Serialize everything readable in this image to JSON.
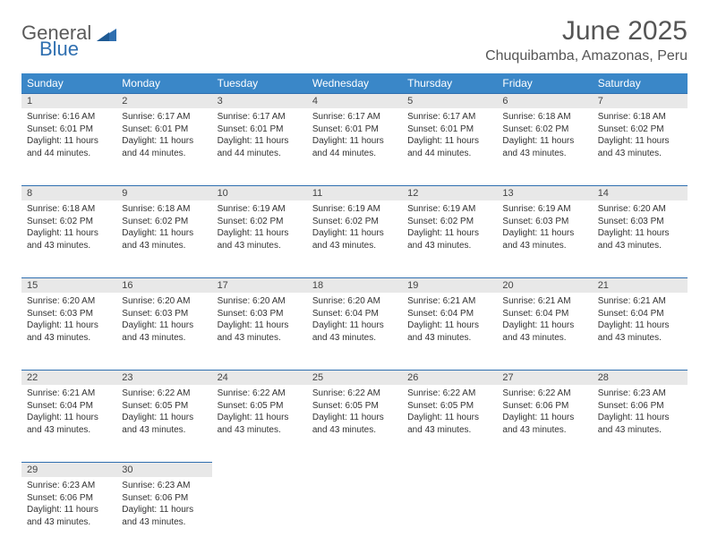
{
  "logo": {
    "word1": "General",
    "word2": "Blue"
  },
  "title": "June 2025",
  "location": "Chuquibamba, Amazonas, Peru",
  "colors": {
    "header_bg": "#3a87c8",
    "header_text": "#ffffff",
    "daynum_bg": "#e8e8e8",
    "daynum_border": "#2f6fb0",
    "text": "#333333",
    "title_text": "#555555",
    "logo_gray": "#5a5a5a",
    "logo_blue": "#2f6fb0",
    "background": "#ffffff"
  },
  "fonts": {
    "family": "Arial",
    "title_size_pt": 22,
    "location_size_pt": 12,
    "weekday_size_pt": 9,
    "daynum_size_pt": 8,
    "body_size_pt": 7.5
  },
  "weekdays": [
    "Sunday",
    "Monday",
    "Tuesday",
    "Wednesday",
    "Thursday",
    "Friday",
    "Saturday"
  ],
  "weeks": [
    [
      {
        "num": "1",
        "sunrise": "Sunrise: 6:16 AM",
        "sunset": "Sunset: 6:01 PM",
        "day1": "Daylight: 11 hours",
        "day2": "and 44 minutes."
      },
      {
        "num": "2",
        "sunrise": "Sunrise: 6:17 AM",
        "sunset": "Sunset: 6:01 PM",
        "day1": "Daylight: 11 hours",
        "day2": "and 44 minutes."
      },
      {
        "num": "3",
        "sunrise": "Sunrise: 6:17 AM",
        "sunset": "Sunset: 6:01 PM",
        "day1": "Daylight: 11 hours",
        "day2": "and 44 minutes."
      },
      {
        "num": "4",
        "sunrise": "Sunrise: 6:17 AM",
        "sunset": "Sunset: 6:01 PM",
        "day1": "Daylight: 11 hours",
        "day2": "and 44 minutes."
      },
      {
        "num": "5",
        "sunrise": "Sunrise: 6:17 AM",
        "sunset": "Sunset: 6:01 PM",
        "day1": "Daylight: 11 hours",
        "day2": "and 44 minutes."
      },
      {
        "num": "6",
        "sunrise": "Sunrise: 6:18 AM",
        "sunset": "Sunset: 6:02 PM",
        "day1": "Daylight: 11 hours",
        "day2": "and 43 minutes."
      },
      {
        "num": "7",
        "sunrise": "Sunrise: 6:18 AM",
        "sunset": "Sunset: 6:02 PM",
        "day1": "Daylight: 11 hours",
        "day2": "and 43 minutes."
      }
    ],
    [
      {
        "num": "8",
        "sunrise": "Sunrise: 6:18 AM",
        "sunset": "Sunset: 6:02 PM",
        "day1": "Daylight: 11 hours",
        "day2": "and 43 minutes."
      },
      {
        "num": "9",
        "sunrise": "Sunrise: 6:18 AM",
        "sunset": "Sunset: 6:02 PM",
        "day1": "Daylight: 11 hours",
        "day2": "and 43 minutes."
      },
      {
        "num": "10",
        "sunrise": "Sunrise: 6:19 AM",
        "sunset": "Sunset: 6:02 PM",
        "day1": "Daylight: 11 hours",
        "day2": "and 43 minutes."
      },
      {
        "num": "11",
        "sunrise": "Sunrise: 6:19 AM",
        "sunset": "Sunset: 6:02 PM",
        "day1": "Daylight: 11 hours",
        "day2": "and 43 minutes."
      },
      {
        "num": "12",
        "sunrise": "Sunrise: 6:19 AM",
        "sunset": "Sunset: 6:02 PM",
        "day1": "Daylight: 11 hours",
        "day2": "and 43 minutes."
      },
      {
        "num": "13",
        "sunrise": "Sunrise: 6:19 AM",
        "sunset": "Sunset: 6:03 PM",
        "day1": "Daylight: 11 hours",
        "day2": "and 43 minutes."
      },
      {
        "num": "14",
        "sunrise": "Sunrise: 6:20 AM",
        "sunset": "Sunset: 6:03 PM",
        "day1": "Daylight: 11 hours",
        "day2": "and 43 minutes."
      }
    ],
    [
      {
        "num": "15",
        "sunrise": "Sunrise: 6:20 AM",
        "sunset": "Sunset: 6:03 PM",
        "day1": "Daylight: 11 hours",
        "day2": "and 43 minutes."
      },
      {
        "num": "16",
        "sunrise": "Sunrise: 6:20 AM",
        "sunset": "Sunset: 6:03 PM",
        "day1": "Daylight: 11 hours",
        "day2": "and 43 minutes."
      },
      {
        "num": "17",
        "sunrise": "Sunrise: 6:20 AM",
        "sunset": "Sunset: 6:03 PM",
        "day1": "Daylight: 11 hours",
        "day2": "and 43 minutes."
      },
      {
        "num": "18",
        "sunrise": "Sunrise: 6:20 AM",
        "sunset": "Sunset: 6:04 PM",
        "day1": "Daylight: 11 hours",
        "day2": "and 43 minutes."
      },
      {
        "num": "19",
        "sunrise": "Sunrise: 6:21 AM",
        "sunset": "Sunset: 6:04 PM",
        "day1": "Daylight: 11 hours",
        "day2": "and 43 minutes."
      },
      {
        "num": "20",
        "sunrise": "Sunrise: 6:21 AM",
        "sunset": "Sunset: 6:04 PM",
        "day1": "Daylight: 11 hours",
        "day2": "and 43 minutes."
      },
      {
        "num": "21",
        "sunrise": "Sunrise: 6:21 AM",
        "sunset": "Sunset: 6:04 PM",
        "day1": "Daylight: 11 hours",
        "day2": "and 43 minutes."
      }
    ],
    [
      {
        "num": "22",
        "sunrise": "Sunrise: 6:21 AM",
        "sunset": "Sunset: 6:04 PM",
        "day1": "Daylight: 11 hours",
        "day2": "and 43 minutes."
      },
      {
        "num": "23",
        "sunrise": "Sunrise: 6:22 AM",
        "sunset": "Sunset: 6:05 PM",
        "day1": "Daylight: 11 hours",
        "day2": "and 43 minutes."
      },
      {
        "num": "24",
        "sunrise": "Sunrise: 6:22 AM",
        "sunset": "Sunset: 6:05 PM",
        "day1": "Daylight: 11 hours",
        "day2": "and 43 minutes."
      },
      {
        "num": "25",
        "sunrise": "Sunrise: 6:22 AM",
        "sunset": "Sunset: 6:05 PM",
        "day1": "Daylight: 11 hours",
        "day2": "and 43 minutes."
      },
      {
        "num": "26",
        "sunrise": "Sunrise: 6:22 AM",
        "sunset": "Sunset: 6:05 PM",
        "day1": "Daylight: 11 hours",
        "day2": "and 43 minutes."
      },
      {
        "num": "27",
        "sunrise": "Sunrise: 6:22 AM",
        "sunset": "Sunset: 6:06 PM",
        "day1": "Daylight: 11 hours",
        "day2": "and 43 minutes."
      },
      {
        "num": "28",
        "sunrise": "Sunrise: 6:23 AM",
        "sunset": "Sunset: 6:06 PM",
        "day1": "Daylight: 11 hours",
        "day2": "and 43 minutes."
      }
    ],
    [
      {
        "num": "29",
        "sunrise": "Sunrise: 6:23 AM",
        "sunset": "Sunset: 6:06 PM",
        "day1": "Daylight: 11 hours",
        "day2": "and 43 minutes."
      },
      {
        "num": "30",
        "sunrise": "Sunrise: 6:23 AM",
        "sunset": "Sunset: 6:06 PM",
        "day1": "Daylight: 11 hours",
        "day2": "and 43 minutes."
      },
      null,
      null,
      null,
      null,
      null
    ]
  ]
}
